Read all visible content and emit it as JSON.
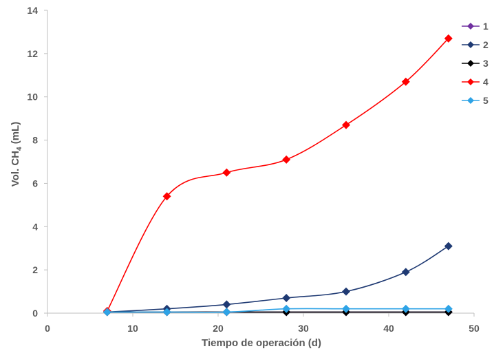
{
  "chart_data": {
    "type": "line",
    "xlabel": "Tiempo de operación (d)",
    "ylabel_main": "Vol. CH",
    "ylabel_sub": "4",
    "ylabel_unit": " (mL)",
    "xlim": [
      0,
      50
    ],
    "ylim": [
      0,
      14
    ],
    "xticks": [
      0,
      10,
      20,
      30,
      40,
      50
    ],
    "yticks": [
      0,
      2,
      4,
      6,
      8,
      10,
      12,
      14
    ],
    "grid": false,
    "legend_position": "right",
    "x": [
      7,
      14,
      21,
      28,
      35,
      42,
      47
    ],
    "series": [
      {
        "name": "1",
        "color": "#7030a0",
        "marker": "diamond",
        "values": [
          0.05,
          0.05,
          0.05,
          0.05,
          0.05,
          0.05,
          0.05
        ]
      },
      {
        "name": "2",
        "color": "#1f3a73",
        "marker": "diamond",
        "values": [
          0.05,
          0.2,
          0.4,
          0.7,
          1.0,
          1.9,
          3.1
        ]
      },
      {
        "name": "3",
        "color": "#000000",
        "marker": "diamond",
        "values": [
          0.05,
          0.05,
          0.05,
          0.05,
          0.05,
          0.05,
          0.05
        ]
      },
      {
        "name": "4",
        "color": "#ff0000",
        "marker": "diamond",
        "values": [
          0.1,
          5.4,
          6.5,
          7.1,
          8.7,
          10.7,
          12.7
        ]
      },
      {
        "name": "5",
        "color": "#2ea3e6",
        "marker": "diamond",
        "values": [
          0.05,
          0.05,
          0.05,
          0.2,
          0.2,
          0.2,
          0.2
        ]
      }
    ]
  }
}
